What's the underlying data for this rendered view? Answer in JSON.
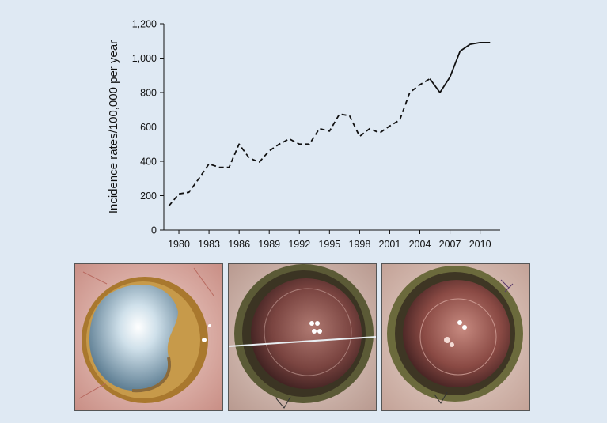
{
  "chart_data": {
    "type": "line",
    "title": "",
    "xlabel": "",
    "ylabel": "Incidence rates/100,000 per year",
    "xlim": [
      1978.5,
      2012
    ],
    "ylim": [
      0,
      1200
    ],
    "xticks": [
      1980,
      1983,
      1986,
      1989,
      1992,
      1995,
      1998,
      2001,
      2004,
      2007,
      2010
    ],
    "yticks": [
      0,
      200,
      400,
      600,
      800,
      1000,
      1200
    ],
    "ytick_labels": [
      "0",
      "200",
      "400",
      "600",
      "800",
      "1,000",
      "1,200"
    ],
    "grid": false,
    "legend": "none",
    "line_color": "#111111",
    "series": [
      {
        "style": "dashed",
        "x": [
          1979,
          1980,
          1981,
          1982,
          1983,
          1984,
          1985,
          1986,
          1987,
          1988,
          1989,
          1990,
          1991,
          1992,
          1993,
          1994,
          1995,
          1996,
          1997,
          1998,
          1999,
          2000,
          2001,
          2002,
          2003,
          2004,
          2005
        ],
        "y": [
          140,
          210,
          220,
          300,
          385,
          365,
          365,
          500,
          420,
          395,
          460,
          500,
          530,
          500,
          500,
          590,
          575,
          675,
          665,
          545,
          590,
          565,
          605,
          640,
          800,
          845,
          880
        ]
      },
      {
        "style": "solid",
        "x": [
          2005,
          2006,
          2007,
          2008,
          2009,
          2010,
          2011
        ],
        "y": [
          880,
          800,
          890,
          1040,
          1080,
          1090,
          1090
        ]
      }
    ]
  },
  "photos": [
    {
      "name": "cataract-photo"
    },
    {
      "name": "surgery-photo"
    },
    {
      "name": "postop-photo"
    }
  ]
}
